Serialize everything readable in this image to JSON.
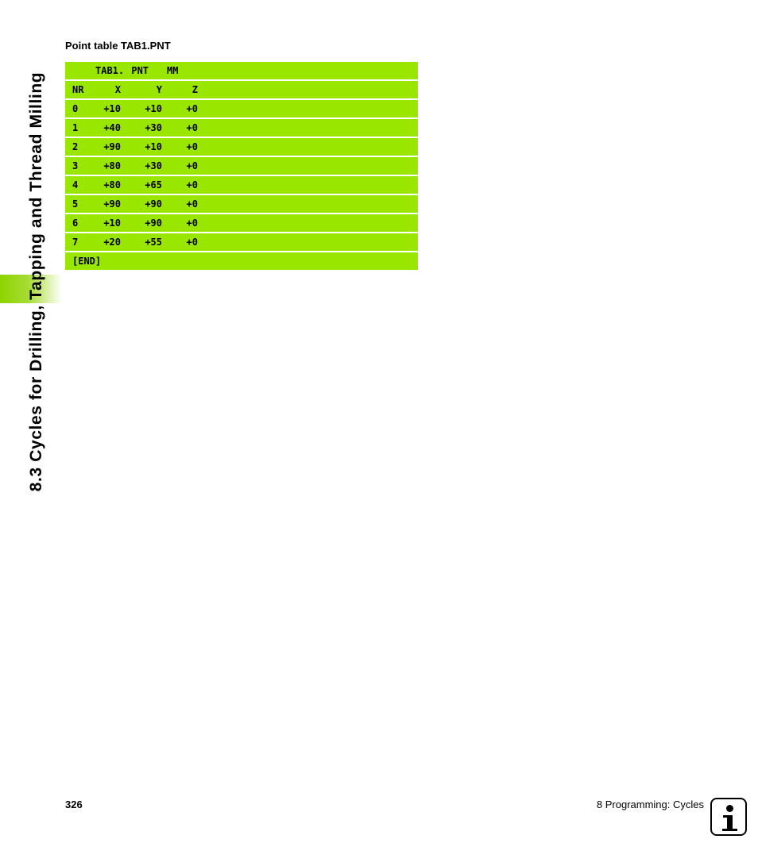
{
  "sidebar": {
    "chapter_title": "8.3 Cycles for Drilling, Tapping and Thread Milling"
  },
  "heading": "Point table TAB1.PNT",
  "table": {
    "file_name": "TAB1. PNT",
    "unit": "MM",
    "columns": [
      "NR",
      "X",
      "Y",
      "Z"
    ],
    "rows": [
      {
        "nr": "0",
        "x": "+10",
        "y": "+10",
        "z": "+0"
      },
      {
        "nr": "1",
        "x": "+40",
        "y": "+30",
        "z": "+0"
      },
      {
        "nr": "2",
        "x": "+90",
        "y": "+10",
        "z": "+0"
      },
      {
        "nr": "3",
        "x": "+80",
        "y": "+30",
        "z": "+0"
      },
      {
        "nr": "4",
        "x": "+80",
        "y": "+65",
        "z": "+0"
      },
      {
        "nr": "5",
        "x": "+90",
        "y": "+90",
        "z": "+0"
      },
      {
        "nr": "6",
        "x": "+10",
        "y": "+90",
        "z": "+0"
      },
      {
        "nr": "7",
        "x": "+20",
        "y": "+55",
        "z": "+0"
      }
    ],
    "end_marker": "[END]"
  },
  "footer": {
    "page_number": "326",
    "chapter": "8 Programming: Cycles",
    "icon": "info-icon"
  },
  "colors": {
    "table_bg": "#99e600",
    "tab_accent": "#8ed400"
  }
}
